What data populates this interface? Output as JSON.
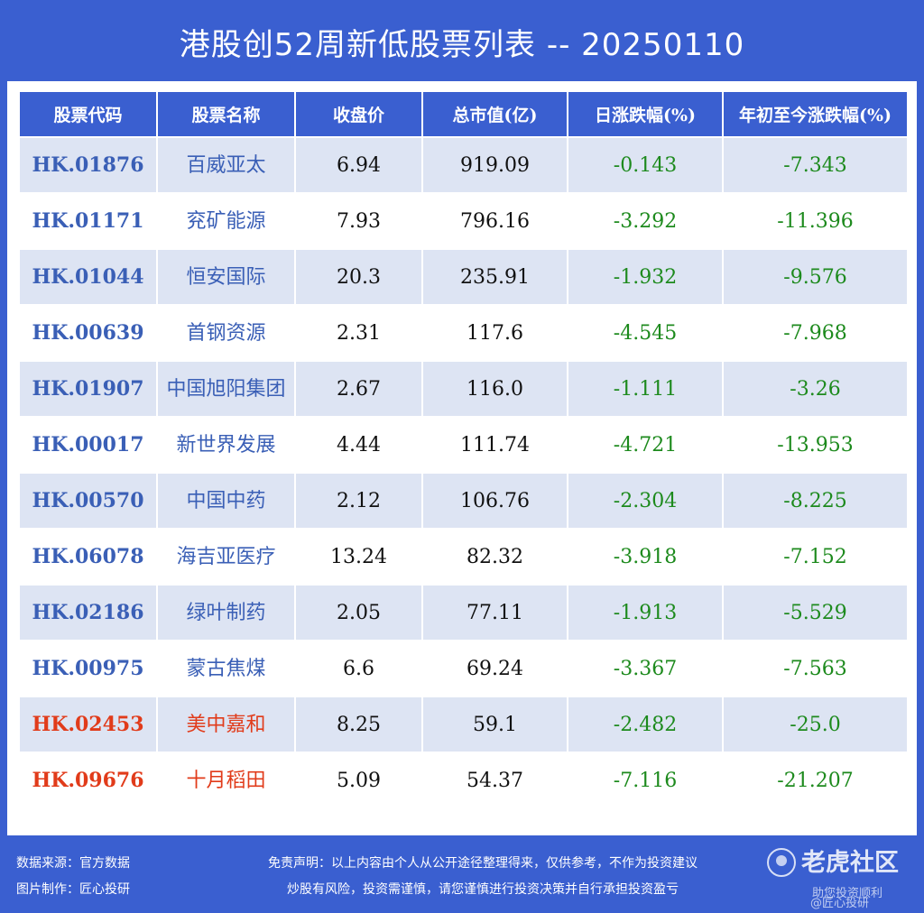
{
  "title": "港股创52周新低股票列表 -- 20250110",
  "table": {
    "headers": [
      "股票代码",
      "股票名称",
      "收盘价",
      "总市值(亿)",
      "日涨跌幅(%)",
      "年初至今涨跌幅(%)"
    ],
    "rows": [
      {
        "code": "HK.01876",
        "name": "百威亚太",
        "close": "6.94",
        "mcap": "919.09",
        "day": "-0.143",
        "ytd": "-7.343"
      },
      {
        "code": "HK.01171",
        "name": "兖矿能源",
        "close": "7.93",
        "mcap": "796.16",
        "day": "-3.292",
        "ytd": "-11.396"
      },
      {
        "code": "HK.01044",
        "name": "恒安国际",
        "close": "20.3",
        "mcap": "235.91",
        "day": "-1.932",
        "ytd": "-9.576"
      },
      {
        "code": "HK.00639",
        "name": "首钢资源",
        "close": "2.31",
        "mcap": "117.6",
        "day": "-4.545",
        "ytd": "-7.968"
      },
      {
        "code": "HK.01907",
        "name": "中国旭阳集团",
        "close": "2.67",
        "mcap": "116.0",
        "day": "-1.111",
        "ytd": "-3.26"
      },
      {
        "code": "HK.00017",
        "name": "新世界发展",
        "close": "4.44",
        "mcap": "111.74",
        "day": "-4.721",
        "ytd": "-13.953"
      },
      {
        "code": "HK.00570",
        "name": "中国中药",
        "close": "2.12",
        "mcap": "106.76",
        "day": "-2.304",
        "ytd": "-8.225"
      },
      {
        "code": "HK.06078",
        "name": "海吉亚医疗",
        "close": "13.24",
        "mcap": "82.32",
        "day": "-3.918",
        "ytd": "-7.152"
      },
      {
        "code": "HK.02186",
        "name": "绿叶制药",
        "close": "2.05",
        "mcap": "77.11",
        "day": "-1.913",
        "ytd": "-5.529"
      },
      {
        "code": "HK.00975",
        "name": "蒙古焦煤",
        "close": "6.6",
        "mcap": "69.24",
        "day": "-3.367",
        "ytd": "-7.563"
      },
      {
        "code": "HK.02453",
        "name": "美中嘉和",
        "close": "8.25",
        "mcap": "59.1",
        "day": "-2.482",
        "ytd": "-25.0"
      },
      {
        "code": "HK.09676",
        "name": "十月稻田",
        "close": "5.09",
        "mcap": "54.37",
        "day": "-7.116",
        "ytd": "-21.207"
      }
    ]
  },
  "footer": {
    "source": "数据来源：官方数据",
    "maker": "图片制作：匠心投研",
    "disclaimer1": "免责声明：以上内容由个人从公开途径整理得来，仅供参考，不作为投资建议",
    "disclaimer2": "炒股有风险，投资需谨慎，请您谨慎进行投资决策并自行承担投资盈亏"
  },
  "watermark": {
    "name": "老虎社区",
    "slogan": "助您投资顺利",
    "handle": "@匠心投研"
  },
  "colors": {
    "background": "#3a5fd0",
    "row_alt": "#dde4f3",
    "code_blue": "#3a5fb6",
    "code_red": "#e13b1a",
    "negative_green": "#1d8a1d"
  }
}
